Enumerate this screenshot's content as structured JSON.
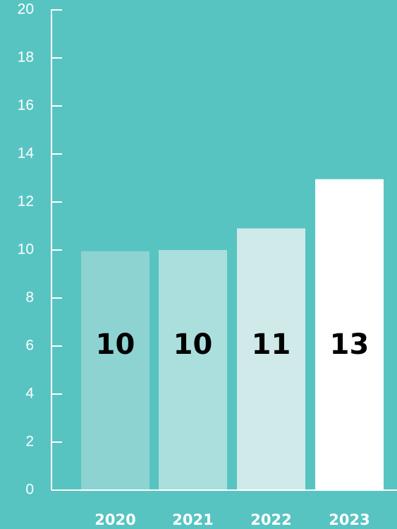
{
  "chart_data": {
    "type": "bar",
    "categories": [
      "2020",
      "2021",
      "2022",
      "2023"
    ],
    "values": [
      9.95,
      10.0,
      10.9,
      12.95
    ],
    "data_labels": [
      "10",
      "10",
      "11",
      "13"
    ],
    "title": "",
    "xlabel": "",
    "ylabel": "",
    "ylim": [
      0,
      20
    ],
    "yticks": [
      0,
      2,
      4,
      6,
      8,
      10,
      12,
      14,
      16,
      18,
      20
    ],
    "grid": false,
    "legend": "none",
    "colors": {
      "background": "#57c4c2",
      "axis": "#ffffff",
      "bars": [
        "#8dd3d1",
        "#aadfde",
        "#cfeae9",
        "#ffffff"
      ],
      "tick_text": "#ffffff",
      "data_label_text": "#000000"
    }
  }
}
